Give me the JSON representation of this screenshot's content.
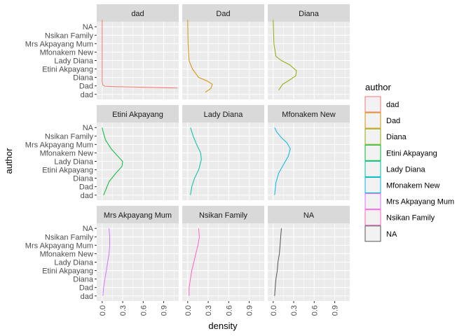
{
  "chart_data": {
    "type": "line",
    "subtype": "faceted density (facet_wrap by author, 3x3)",
    "xlabel": "density",
    "ylabel": "author",
    "xlim": [
      -0.08,
      1.12
    ],
    "x_ticks": [
      0.0,
      0.3,
      0.6,
      0.9
    ],
    "x_tick_labels": [
      "0.0",
      "0.3",
      "0.6",
      "0.9"
    ],
    "y_categories": [
      "dad",
      "Dad",
      "Diana",
      "Etini Akpayang",
      "Lady Diana",
      "Mfonakem New",
      "Mrs Akpayang Mum",
      "Nsikan Family",
      "NA"
    ],
    "grid": true,
    "panel_background": "#ebebeb",
    "strip_background": "#d9d9d9",
    "legend": {
      "title": "author",
      "position": "right",
      "entries": [
        {
          "label": "dad",
          "color": "#F8766D"
        },
        {
          "label": "Dad",
          "color": "#D39200"
        },
        {
          "label": "Diana",
          "color": "#93AA00"
        },
        {
          "label": "Etini Akpayang",
          "color": "#00BA38"
        },
        {
          "label": "Lady Diana",
          "color": "#00C19F"
        },
        {
          "label": "Mfonakem New",
          "color": "#00B9E3"
        },
        {
          "label": "Mrs Akpayang Mum",
          "color": "#DB72FB"
        },
        {
          "label": "Nsikan Family",
          "color": "#FF61C3"
        },
        {
          "label": "NA",
          "color": "#555555"
        }
      ]
    },
    "facets": [
      {
        "strip": "dad",
        "color": "#F8766D",
        "curve": [
          [
            0,
            8.8
          ],
          [
            0,
            6
          ],
          [
            0,
            4
          ],
          [
            0,
            2
          ],
          [
            0,
            1.5
          ],
          [
            0.01,
            1.1
          ],
          [
            0.04,
            0.97
          ],
          [
            0.2,
            0.92
          ],
          [
            0.5,
            0.86
          ],
          [
            0.8,
            0.8
          ],
          [
            1.1,
            0.75
          ]
        ]
      },
      {
        "strip": "Dad",
        "color": "#D39200",
        "curve": [
          [
            0,
            8.8
          ],
          [
            0.005,
            6
          ],
          [
            0.02,
            4
          ],
          [
            0.07,
            3
          ],
          [
            0.16,
            2
          ],
          [
            0.28,
            1.6
          ],
          [
            0.36,
            1.2
          ],
          [
            0.34,
            0.7
          ],
          [
            0.26,
            0.25
          ]
        ]
      },
      {
        "strip": "Diana",
        "color": "#93AA00",
        "curve": [
          [
            0,
            8.8
          ],
          [
            0.01,
            6
          ],
          [
            0.04,
            4.5
          ],
          [
            0.12,
            4
          ],
          [
            0.24,
            3.5
          ],
          [
            0.34,
            2.8
          ],
          [
            0.33,
            2.2
          ],
          [
            0.24,
            1.7
          ],
          [
            0.14,
            1.2
          ],
          [
            0.08,
            0.5
          ]
        ]
      },
      {
        "strip": "Etini Akpayang",
        "color": "#00BA38",
        "curve": [
          [
            0,
            8
          ],
          [
            0.01,
            7.6
          ],
          [
            0.05,
            6.5
          ],
          [
            0.13,
            5.5
          ],
          [
            0.23,
            4.6
          ],
          [
            0.3,
            4.0
          ],
          [
            0.29,
            3.4
          ],
          [
            0.2,
            2.6
          ],
          [
            0.1,
            1.6
          ],
          [
            0.02,
            0
          ]
        ]
      },
      {
        "strip": "Lady Diana",
        "color": "#00C19F",
        "curve": [
          [
            0.04,
            8
          ],
          [
            0.08,
            7
          ],
          [
            0.13,
            6
          ],
          [
            0.19,
            5
          ],
          [
            0.2,
            4.2
          ],
          [
            0.16,
            3
          ],
          [
            0.1,
            2
          ],
          [
            0.06,
            1
          ],
          [
            0.04,
            0
          ]
        ]
      },
      {
        "strip": "Mfonakem New",
        "color": "#00B9E3",
        "curve": [
          [
            0.02,
            8
          ],
          [
            0.05,
            7.5
          ],
          [
            0.12,
            6.8
          ],
          [
            0.2,
            6.2
          ],
          [
            0.25,
            5.5
          ],
          [
            0.22,
            4.6
          ],
          [
            0.15,
            3.6
          ],
          [
            0.08,
            2.6
          ],
          [
            0.04,
            1.5
          ],
          [
            0.02,
            0
          ]
        ]
      },
      {
        "strip": "Mrs Akpayang Mum",
        "color": "#DB72FB",
        "curve": [
          [
            0.1,
            8
          ],
          [
            0.11,
            7
          ],
          [
            0.11,
            6
          ],
          [
            0.1,
            5
          ],
          [
            0.08,
            4
          ],
          [
            0.06,
            3
          ],
          [
            0.04,
            2
          ],
          [
            0.02,
            1
          ],
          [
            0.01,
            0
          ]
        ]
      },
      {
        "strip": "Nsikan Family",
        "color": "#FF61C3",
        "curve": [
          [
            0.16,
            8
          ],
          [
            0.17,
            7
          ],
          [
            0.15,
            6
          ],
          [
            0.12,
            5
          ],
          [
            0.09,
            4
          ],
          [
            0.06,
            3
          ],
          [
            0.04,
            2
          ],
          [
            0.02,
            1
          ],
          [
            0.02,
            0
          ]
        ]
      },
      {
        "strip": "NA",
        "color": "#555555",
        "curve": [
          [
            0.12,
            8
          ],
          [
            0.11,
            7
          ],
          [
            0.1,
            6
          ],
          [
            0.09,
            5
          ],
          [
            0.07,
            4
          ],
          [
            0.06,
            3
          ],
          [
            0.04,
            2
          ],
          [
            0.03,
            1
          ],
          [
            0.02,
            0
          ]
        ]
      }
    ]
  }
}
